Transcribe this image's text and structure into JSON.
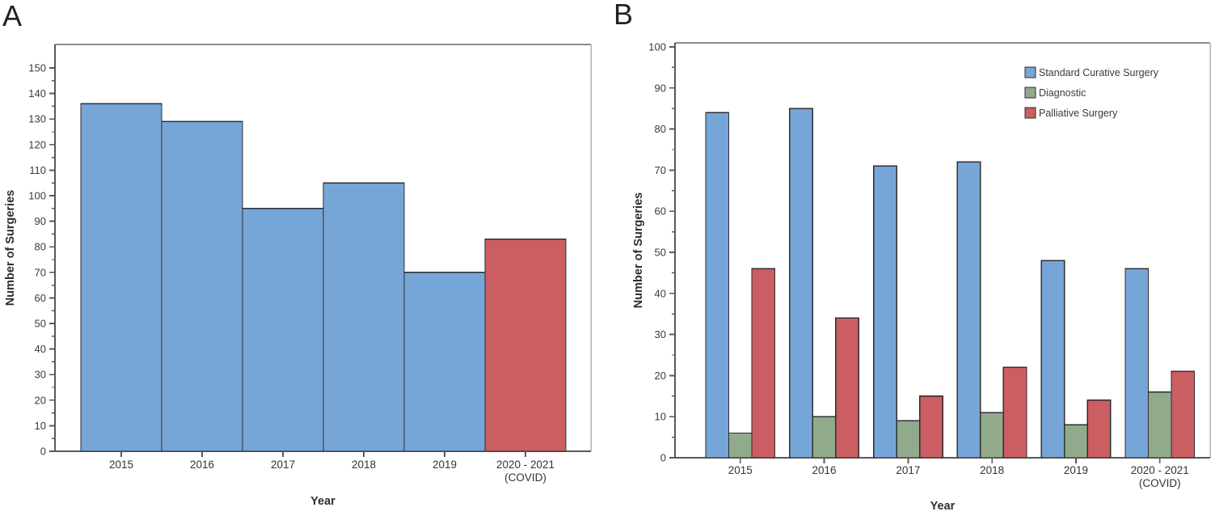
{
  "figure": {
    "background": "#ffffff",
    "panels": [
      {
        "label": "A"
      },
      {
        "label": "B"
      }
    ]
  },
  "palette": {
    "standard_blue": "#76A5D8",
    "diagnostic_green": "#92AA8C",
    "palliative_red": "#CA5E63",
    "bar_outline": "#2E2E2E",
    "axis_dark": "#595959",
    "frame_top": "#8C8C8C",
    "frame_right": "#B2B2B2",
    "text": "#3A3A3A"
  },
  "chart_data": [
    {
      "id": "A",
      "panel_label": "A",
      "type": "bar",
      "title": "",
      "xlabel": "Year",
      "ylabel": "Number of Surgeries",
      "ylim": [
        0,
        150
      ],
      "ytick_step": 10,
      "ytick_minor_step": 5,
      "grid": false,
      "legend": null,
      "categories": [
        "2015",
        "2016",
        "2017",
        "2018",
        "2019",
        "2020 - 2021"
      ],
      "category_sublabels": [
        "",
        "",
        "",
        "",
        "",
        "(COVID)"
      ],
      "values": [
        136,
        129,
        95,
        105,
        70,
        83
      ],
      "bar_color_keys": [
        "standard_blue",
        "standard_blue",
        "standard_blue",
        "standard_blue",
        "standard_blue",
        "palliative_red"
      ]
    },
    {
      "id": "B",
      "panel_label": "B",
      "type": "grouped-bar",
      "title": "",
      "xlabel": "Year",
      "ylabel": "Number of Surgeries",
      "ylim": [
        0,
        100
      ],
      "ytick_step": 10,
      "ytick_minor_step": 5,
      "grid": false,
      "legend_position": "top-right",
      "categories": [
        "2015",
        "2016",
        "2017",
        "2018",
        "2019",
        "2020 - 2021"
      ],
      "category_sublabels": [
        "",
        "",
        "",
        "",
        "",
        "(COVID)"
      ],
      "series": [
        {
          "name": "Standard Curative Surgery",
          "color_key": "standard_blue",
          "values": [
            84,
            85,
            71,
            72,
            48,
            46
          ]
        },
        {
          "name": "Diagnostic",
          "color_key": "diagnostic_green",
          "values": [
            6,
            10,
            9,
            11,
            8,
            16
          ]
        },
        {
          "name": "Palliative Surgery",
          "color_key": "palliative_red",
          "values": [
            46,
            34,
            15,
            22,
            14,
            21
          ]
        }
      ]
    }
  ]
}
